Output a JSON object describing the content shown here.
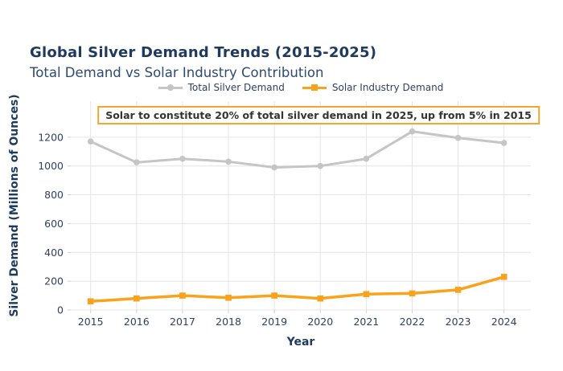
{
  "header": {
    "title": "Global Silver Demand Trends (2015-2025)",
    "subtitle": "Total Demand vs Solar Industry Contribution"
  },
  "legend": {
    "items": [
      {
        "label": "Total Silver Demand",
        "color": "#c5c5c5",
        "marker": "circle"
      },
      {
        "label": "Solar Industry Demand",
        "color": "#f9a21c",
        "marker": "square"
      }
    ]
  },
  "annotation": {
    "text": "Solar to constitute 20% of total silver demand in 2025, up from 5% in 2015",
    "border_color": "#f2a62e",
    "text_color": "#333333",
    "background": "#ffffff"
  },
  "chart_data": {
    "type": "line",
    "x": [
      2015,
      2016,
      2017,
      2018,
      2019,
      2020,
      2021,
      2022,
      2023,
      2024
    ],
    "series": [
      {
        "name": "Total Silver Demand",
        "color": "#c5c5c5",
        "marker": "circle",
        "values": [
          1170,
          1025,
          1050,
          1030,
          990,
          1000,
          1050,
          1240,
          1195,
          1160
        ]
      },
      {
        "name": "Solar Industry Demand",
        "color": "#f9a21c",
        "marker": "square",
        "values": [
          60,
          80,
          100,
          85,
          100,
          80,
          110,
          115,
          140,
          230
        ]
      }
    ],
    "xlabel": "Year",
    "ylabel": "Silver Demand (Millions of Ounces)",
    "yticks": [
      0,
      200,
      400,
      600,
      800,
      1000,
      1200
    ],
    "ylim": [
      0,
      1450
    ],
    "grid": true,
    "grid_color": "#e4e4e4",
    "legend_position": "top-center"
  }
}
